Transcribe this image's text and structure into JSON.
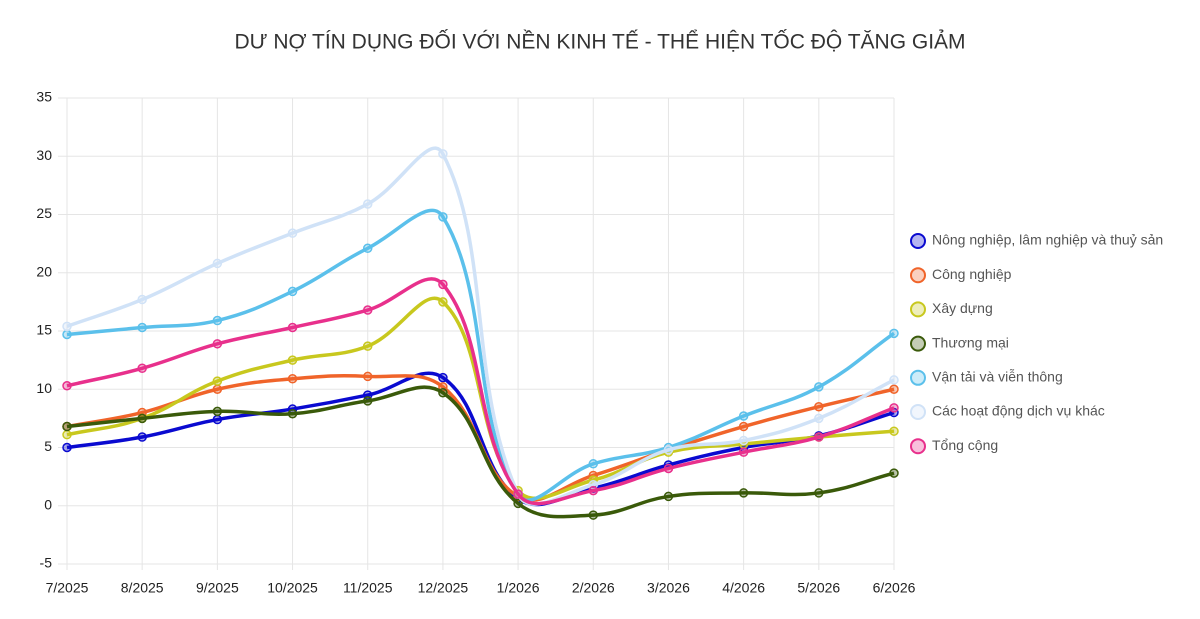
{
  "chart_data": {
    "type": "line",
    "title": "DƯ NỢ TÍN DỤNG ĐỐI VỚI NỀN KINH TẾ - THỂ HIỆN TỐC ĐỘ TĂNG GIẢM",
    "categories": [
      "7/2025",
      "8/2025",
      "9/2025",
      "10/2025",
      "11/2025",
      "12/2025",
      "1/2026",
      "2/2026",
      "3/2026",
      "4/2026",
      "5/2026",
      "6/2026"
    ],
    "ylim": [
      -5,
      35
    ],
    "yticks": [
      -5,
      0,
      5,
      10,
      15,
      20,
      25,
      30,
      35
    ],
    "grid": true,
    "legend": "right",
    "series": [
      {
        "name": "Nông nghiệp, lâm nghiệp và thuỷ sản",
        "color": "#0a0ad0",
        "values": [
          5.0,
          5.9,
          7.4,
          8.3,
          9.5,
          11.0,
          0.6,
          1.5,
          3.5,
          5.0,
          6.0,
          8.0
        ]
      },
      {
        "name": "Công nghiệp",
        "color": "#f0642a",
        "values": [
          6.8,
          8.0,
          10.0,
          10.9,
          11.1,
          10.2,
          0.8,
          2.6,
          4.8,
          6.8,
          8.5,
          10.0
        ]
      },
      {
        "name": "Xây dựng",
        "color": "#c8c81e",
        "values": [
          6.1,
          7.5,
          10.7,
          12.5,
          13.7,
          17.5,
          1.3,
          2.2,
          4.6,
          5.3,
          5.9,
          6.4
        ]
      },
      {
        "name": "Thương mại",
        "color": "#3a5a0a",
        "values": [
          6.8,
          7.5,
          8.1,
          7.9,
          9.0,
          9.7,
          0.2,
          -0.8,
          0.8,
          1.1,
          1.1,
          2.8
        ]
      },
      {
        "name": "Vận tải và viễn thông",
        "color": "#5bc0eb",
        "values": [
          14.7,
          15.3,
          15.9,
          18.4,
          22.1,
          24.8,
          1.0,
          3.6,
          5.0,
          7.7,
          10.2,
          14.8
        ]
      },
      {
        "name": "Các hoạt động dịch vụ khác",
        "color": "#d0e2f7",
        "values": [
          15.4,
          17.7,
          20.8,
          23.4,
          25.9,
          30.2,
          1.0,
          1.8,
          4.8,
          5.6,
          7.5,
          10.8
        ]
      },
      {
        "name": "Tổng cộng",
        "color": "#e8308c",
        "values": [
          10.3,
          11.8,
          13.9,
          15.3,
          16.8,
          19.0,
          1.0,
          1.3,
          3.2,
          4.6,
          5.9,
          8.4
        ]
      }
    ]
  }
}
